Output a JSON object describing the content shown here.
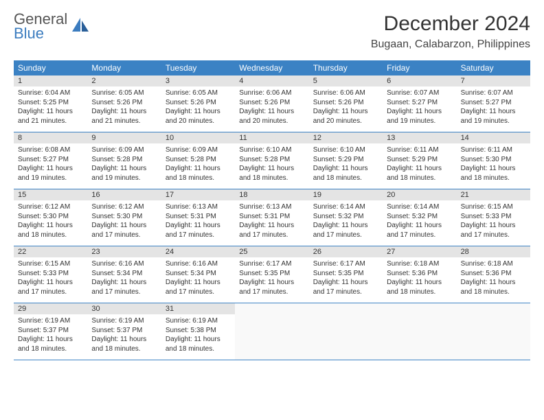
{
  "logo": {
    "line1": "General",
    "line2": "Blue"
  },
  "title": "December 2024",
  "location": "Bugaan, Calabarzon, Philippines",
  "colors": {
    "header_bg": "#3b82c4",
    "header_text": "#ffffff",
    "daynum_bg": "#e4e4e4",
    "week_border": "#3b82c4",
    "logo_gray": "#555555",
    "logo_blue": "#3b7cbf",
    "text": "#333333"
  },
  "typography": {
    "title_fontsize": 30,
    "location_fontsize": 16,
    "dayheader_fontsize": 12,
    "daynum_fontsize": 11,
    "cell_fontsize": 10
  },
  "day_headers": [
    "Sunday",
    "Monday",
    "Tuesday",
    "Wednesday",
    "Thursday",
    "Friday",
    "Saturday"
  ],
  "weeks": [
    [
      {
        "n": "1",
        "sr": "6:04 AM",
        "ss": "5:25 PM",
        "dl": "11 hours and 21 minutes."
      },
      {
        "n": "2",
        "sr": "6:05 AM",
        "ss": "5:26 PM",
        "dl": "11 hours and 21 minutes."
      },
      {
        "n": "3",
        "sr": "6:05 AM",
        "ss": "5:26 PM",
        "dl": "11 hours and 20 minutes."
      },
      {
        "n": "4",
        "sr": "6:06 AM",
        "ss": "5:26 PM",
        "dl": "11 hours and 20 minutes."
      },
      {
        "n": "5",
        "sr": "6:06 AM",
        "ss": "5:26 PM",
        "dl": "11 hours and 20 minutes."
      },
      {
        "n": "6",
        "sr": "6:07 AM",
        "ss": "5:27 PM",
        "dl": "11 hours and 19 minutes."
      },
      {
        "n": "7",
        "sr": "6:07 AM",
        "ss": "5:27 PM",
        "dl": "11 hours and 19 minutes."
      }
    ],
    [
      {
        "n": "8",
        "sr": "6:08 AM",
        "ss": "5:27 PM",
        "dl": "11 hours and 19 minutes."
      },
      {
        "n": "9",
        "sr": "6:09 AM",
        "ss": "5:28 PM",
        "dl": "11 hours and 19 minutes."
      },
      {
        "n": "10",
        "sr": "6:09 AM",
        "ss": "5:28 PM",
        "dl": "11 hours and 18 minutes."
      },
      {
        "n": "11",
        "sr": "6:10 AM",
        "ss": "5:28 PM",
        "dl": "11 hours and 18 minutes."
      },
      {
        "n": "12",
        "sr": "6:10 AM",
        "ss": "5:29 PM",
        "dl": "11 hours and 18 minutes."
      },
      {
        "n": "13",
        "sr": "6:11 AM",
        "ss": "5:29 PM",
        "dl": "11 hours and 18 minutes."
      },
      {
        "n": "14",
        "sr": "6:11 AM",
        "ss": "5:30 PM",
        "dl": "11 hours and 18 minutes."
      }
    ],
    [
      {
        "n": "15",
        "sr": "6:12 AM",
        "ss": "5:30 PM",
        "dl": "11 hours and 18 minutes."
      },
      {
        "n": "16",
        "sr": "6:12 AM",
        "ss": "5:30 PM",
        "dl": "11 hours and 17 minutes."
      },
      {
        "n": "17",
        "sr": "6:13 AM",
        "ss": "5:31 PM",
        "dl": "11 hours and 17 minutes."
      },
      {
        "n": "18",
        "sr": "6:13 AM",
        "ss": "5:31 PM",
        "dl": "11 hours and 17 minutes."
      },
      {
        "n": "19",
        "sr": "6:14 AM",
        "ss": "5:32 PM",
        "dl": "11 hours and 17 minutes."
      },
      {
        "n": "20",
        "sr": "6:14 AM",
        "ss": "5:32 PM",
        "dl": "11 hours and 17 minutes."
      },
      {
        "n": "21",
        "sr": "6:15 AM",
        "ss": "5:33 PM",
        "dl": "11 hours and 17 minutes."
      }
    ],
    [
      {
        "n": "22",
        "sr": "6:15 AM",
        "ss": "5:33 PM",
        "dl": "11 hours and 17 minutes."
      },
      {
        "n": "23",
        "sr": "6:16 AM",
        "ss": "5:34 PM",
        "dl": "11 hours and 17 minutes."
      },
      {
        "n": "24",
        "sr": "6:16 AM",
        "ss": "5:34 PM",
        "dl": "11 hours and 17 minutes."
      },
      {
        "n": "25",
        "sr": "6:17 AM",
        "ss": "5:35 PM",
        "dl": "11 hours and 17 minutes."
      },
      {
        "n": "26",
        "sr": "6:17 AM",
        "ss": "5:35 PM",
        "dl": "11 hours and 17 minutes."
      },
      {
        "n": "27",
        "sr": "6:18 AM",
        "ss": "5:36 PM",
        "dl": "11 hours and 18 minutes."
      },
      {
        "n": "28",
        "sr": "6:18 AM",
        "ss": "5:36 PM",
        "dl": "11 hours and 18 minutes."
      }
    ],
    [
      {
        "n": "29",
        "sr": "6:19 AM",
        "ss": "5:37 PM",
        "dl": "11 hours and 18 minutes."
      },
      {
        "n": "30",
        "sr": "6:19 AM",
        "ss": "5:37 PM",
        "dl": "11 hours and 18 minutes."
      },
      {
        "n": "31",
        "sr": "6:19 AM",
        "ss": "5:38 PM",
        "dl": "11 hours and 18 minutes."
      },
      null,
      null,
      null,
      null
    ]
  ],
  "labels": {
    "sunrise": "Sunrise:",
    "sunset": "Sunset:",
    "daylight": "Daylight:"
  }
}
